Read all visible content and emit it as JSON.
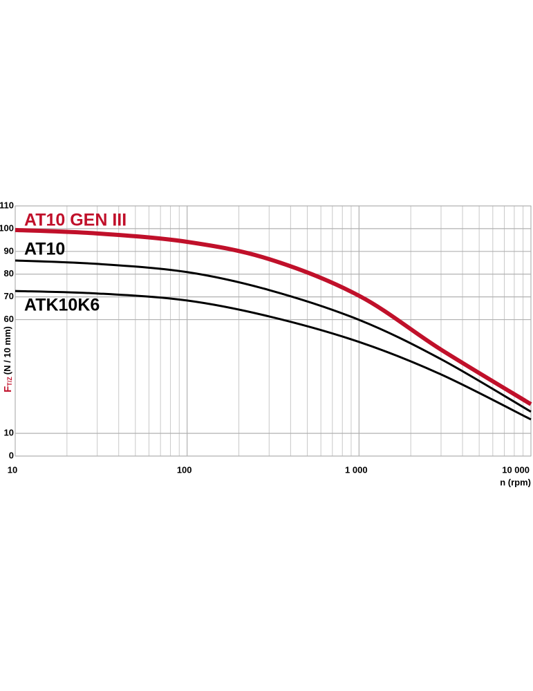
{
  "chart_data": {
    "type": "line",
    "x_label": "n (rpm)",
    "y_label": {
      "symbol": "F",
      "subscript": "T/Z",
      "unit": "(N / 10 mm)"
    },
    "x": [
      10,
      30,
      100,
      300,
      1000,
      3000,
      10000
    ],
    "series": [
      {
        "name": "AT10 GEN III",
        "color": "#c0102a",
        "values": [
          99.4,
          97.9,
          94.2,
          86.6,
          70.5,
          46.8,
          22.8
        ]
      },
      {
        "name": "AT10",
        "color": "#000000",
        "values": [
          86,
          84.5,
          80.9,
          73,
          59.9,
          42.6,
          19.5
        ]
      },
      {
        "name": "ATK10K6",
        "color": "#000000",
        "values": [
          72.6,
          71.5,
          68.4,
          61.4,
          50.2,
          35.9,
          16.1
        ]
      }
    ],
    "xlog": true,
    "xlim": [
      10,
      10000
    ],
    "xticks": [
      10,
      100,
      {
        "value": 1000,
        "label": "1 000"
      },
      {
        "value": 10000,
        "label": "10 000"
      }
    ],
    "ylim": [
      0,
      110
    ],
    "yticks": [
      0,
      10,
      60,
      70,
      80,
      90,
      100,
      110
    ],
    "grid": true
  }
}
